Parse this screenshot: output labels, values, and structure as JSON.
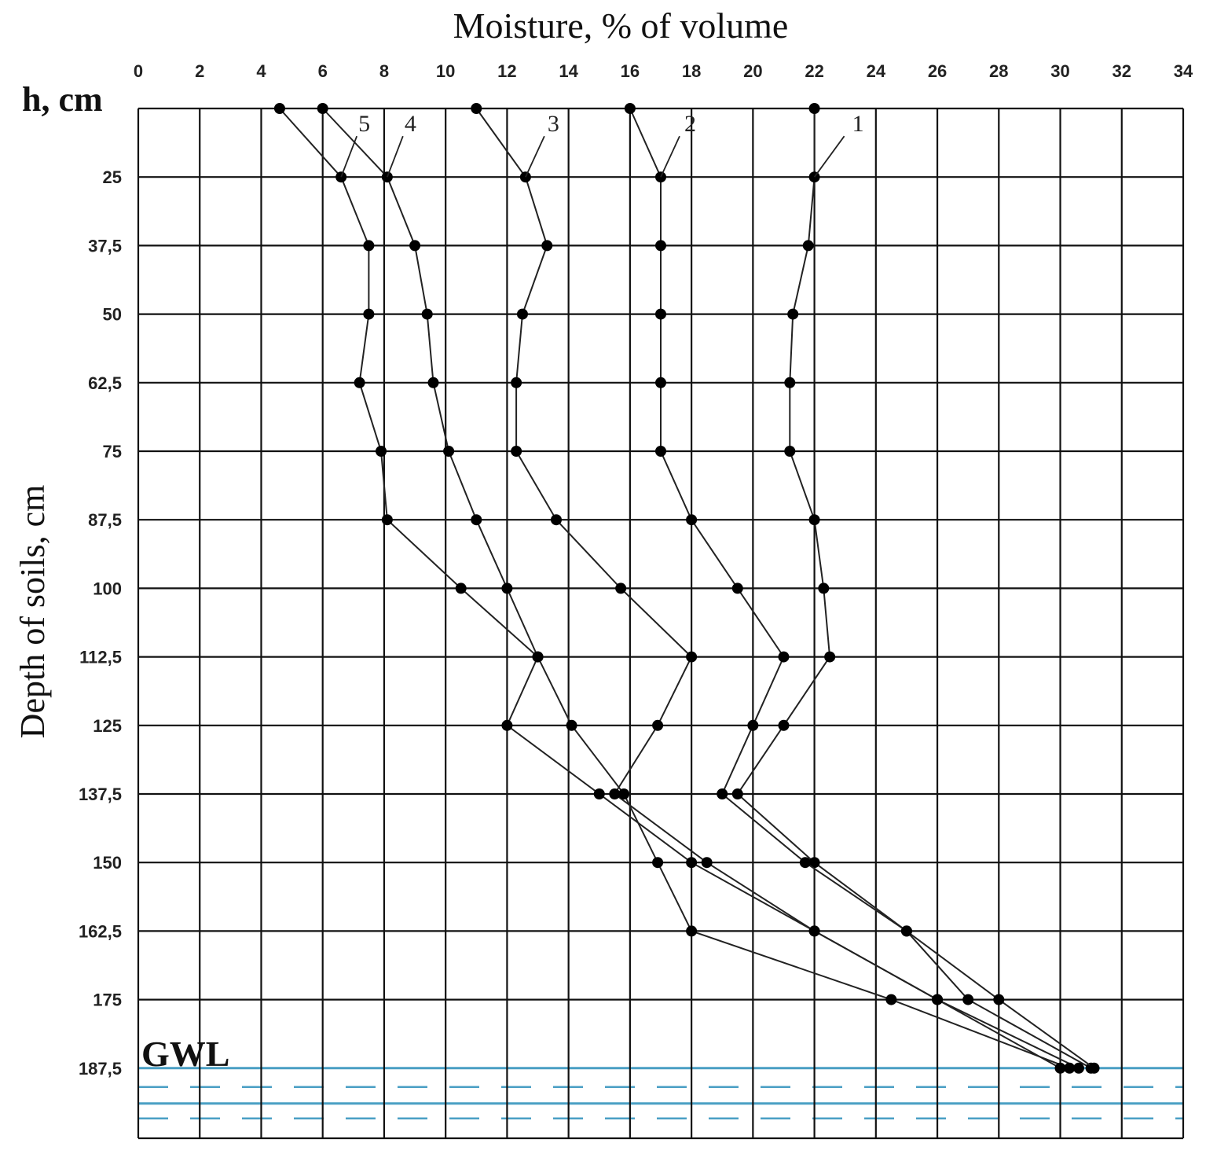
{
  "chart_data": {
    "type": "line",
    "title": "Moisture, % of volume",
    "xlabel": "Moisture, % of volume",
    "ylabel": "Depth of soils, cm",
    "y_unit_label": "h, cm",
    "xlim": [
      0,
      34
    ],
    "ylim": [
      12.5,
      187.5
    ],
    "y_inverted": true,
    "x_ticks": [
      "0",
      "2",
      "4",
      "6",
      "8",
      "10",
      "12",
      "14",
      "16",
      "18",
      "20",
      "22",
      "24",
      "26",
      "28",
      "30",
      "32",
      "34"
    ],
    "y_ticks": [
      {
        "value": 25,
        "label": "25"
      },
      {
        "value": 37.5,
        "label": "37,5"
      },
      {
        "value": 50,
        "label": "50"
      },
      {
        "value": 62.5,
        "label": "62,5"
      },
      {
        "value": 75,
        "label": "75"
      },
      {
        "value": 87.5,
        "label": "87,5"
      },
      {
        "value": 100,
        "label": "100"
      },
      {
        "value": 112.5,
        "label": "112,5"
      },
      {
        "value": 125,
        "label": "125"
      },
      {
        "value": 137.5,
        "label": "137,5"
      },
      {
        "value": 150,
        "label": "150"
      },
      {
        "value": 162.5,
        "label": "162,5"
      },
      {
        "value": 175,
        "label": "175"
      },
      {
        "value": 187.5,
        "label": "187,5"
      }
    ],
    "grid": true,
    "groundwater_label": "GWL",
    "groundwater_depth": 187.5,
    "series": [
      {
        "name": "1",
        "label_point": {
          "x": 22,
          "y": 25
        },
        "points": [
          {
            "x": 22,
            "y": 12.5
          },
          {
            "x": 22,
            "y": 25
          },
          {
            "x": 21.8,
            "y": 37.5
          },
          {
            "x": 21.3,
            "y": 50
          },
          {
            "x": 21.2,
            "y": 62.5
          },
          {
            "x": 21.2,
            "y": 75
          },
          {
            "x": 22,
            "y": 87.5
          },
          {
            "x": 22.3,
            "y": 100
          },
          {
            "x": 22.5,
            "y": 112.5
          },
          {
            "x": 21,
            "y": 125
          },
          {
            "x": 19.5,
            "y": 137.5
          },
          {
            "x": 22,
            "y": 150
          },
          {
            "x": 25,
            "y": 162.5
          },
          {
            "x": 27,
            "y": 175
          },
          {
            "x": 31,
            "y": 187.5
          }
        ]
      },
      {
        "name": "2",
        "label_point": {
          "x": 17,
          "y": 25
        },
        "points": [
          {
            "x": 16,
            "y": 12.5
          },
          {
            "x": 17,
            "y": 25
          },
          {
            "x": 17,
            "y": 37.5
          },
          {
            "x": 17,
            "y": 50
          },
          {
            "x": 17,
            "y": 62.5
          },
          {
            "x": 17,
            "y": 75
          },
          {
            "x": 18,
            "y": 87.5
          },
          {
            "x": 19.5,
            "y": 100
          },
          {
            "x": 21,
            "y": 112.5
          },
          {
            "x": 20,
            "y": 125
          },
          {
            "x": 19,
            "y": 137.5
          },
          {
            "x": 21.7,
            "y": 150
          },
          {
            "x": 25,
            "y": 162.5
          },
          {
            "x": 28,
            "y": 175
          },
          {
            "x": 31.1,
            "y": 187.5
          }
        ]
      },
      {
        "name": "3",
        "label_point": {
          "x": 12.6,
          "y": 25
        },
        "points": [
          {
            "x": 11,
            "y": 12.5
          },
          {
            "x": 12.6,
            "y": 25
          },
          {
            "x": 13.3,
            "y": 37.5
          },
          {
            "x": 12.5,
            "y": 50
          },
          {
            "x": 12.3,
            "y": 62.5
          },
          {
            "x": 12.3,
            "y": 75
          },
          {
            "x": 13.6,
            "y": 87.5
          },
          {
            "x": 15.7,
            "y": 100
          },
          {
            "x": 18,
            "y": 112.5
          },
          {
            "x": 16.9,
            "y": 125
          },
          {
            "x": 15.5,
            "y": 137.5
          },
          {
            "x": 18.5,
            "y": 150
          },
          {
            "x": 22,
            "y": 162.5
          },
          {
            "x": 26,
            "y": 175
          },
          {
            "x": 30.6,
            "y": 187.5
          }
        ]
      },
      {
        "name": "4",
        "label_point": {
          "x": 8.1,
          "y": 25
        },
        "points": [
          {
            "x": 6,
            "y": 12.5
          },
          {
            "x": 8.1,
            "y": 25
          },
          {
            "x": 9,
            "y": 37.5
          },
          {
            "x": 9.4,
            "y": 50
          },
          {
            "x": 9.6,
            "y": 62.5
          },
          {
            "x": 10.1,
            "y": 75
          },
          {
            "x": 11,
            "y": 87.5
          },
          {
            "x": 12,
            "y": 100
          },
          {
            "x": 13,
            "y": 112.5
          },
          {
            "x": 14.1,
            "y": 125
          },
          {
            "x": 15.8,
            "y": 137.5
          },
          {
            "x": 16.9,
            "y": 150
          },
          {
            "x": 18,
            "y": 162.5
          },
          {
            "x": 24.5,
            "y": 175
          },
          {
            "x": 30.3,
            "y": 187.5
          }
        ]
      },
      {
        "name": "5",
        "label_point": {
          "x": 6.6,
          "y": 25
        },
        "points": [
          {
            "x": 4.6,
            "y": 12.5
          },
          {
            "x": 6.6,
            "y": 25
          },
          {
            "x": 7.5,
            "y": 37.5
          },
          {
            "x": 7.5,
            "y": 50
          },
          {
            "x": 7.2,
            "y": 62.5
          },
          {
            "x": 7.9,
            "y": 75
          },
          {
            "x": 8.1,
            "y": 87.5
          },
          {
            "x": 10.5,
            "y": 100
          },
          {
            "x": 13,
            "y": 112.5
          },
          {
            "x": 12,
            "y": 125
          },
          {
            "x": 15,
            "y": 137.5
          },
          {
            "x": 18,
            "y": 150
          },
          {
            "x": 22,
            "y": 162.5
          },
          {
            "x": 26,
            "y": 175
          },
          {
            "x": 30,
            "y": 187.5
          }
        ]
      }
    ]
  }
}
